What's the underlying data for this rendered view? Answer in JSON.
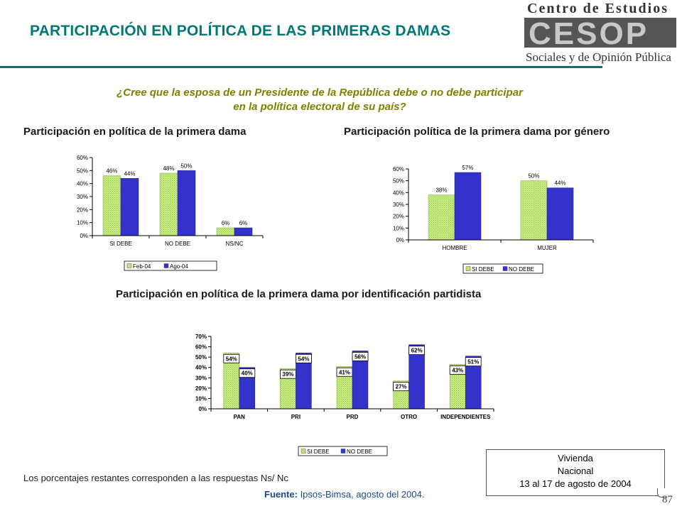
{
  "header": {
    "title": "PARTICIPACIÓN EN POLÍTICA DE LAS PRIMERAS DAMAS",
    "logo_line1": "Centro de Estudios",
    "logo_word": "CESOP",
    "logo_line2": "Sociales y de Opinión Pública"
  },
  "question": {
    "line1": "¿Cree que la esposa de un Presidente de la República debe o no debe participar",
    "line2": "en la política electoral de su país?"
  },
  "subtitles": {
    "chart1": "Participación en política de la primera dama",
    "chart2": "Participación política de la primera dama por género",
    "chart3": "Participación en política de la primera dama por identificación partidista"
  },
  "colors": {
    "series_a": "#ccee88",
    "series_a_hatch": "#8fbf3f",
    "series_b": "#3333cc",
    "title": "#007878",
    "question": "#808000"
  },
  "chart_data": [
    {
      "type": "bar",
      "categories": [
        "SI DEBE",
        "NO DEBE",
        "NS/NC"
      ],
      "series": [
        {
          "name": "Feb-04",
          "values": [
            46,
            48,
            6
          ]
        },
        {
          "name": "Ago-04",
          "values": [
            44,
            50,
            6
          ]
        }
      ],
      "ylim": [
        0,
        60
      ],
      "yticks": [
        "0%",
        "10%",
        "20%",
        "30%",
        "40%",
        "50%",
        "60%"
      ],
      "labels": [
        [
          "46%",
          "48%",
          "6%"
        ],
        [
          "44%",
          "50%",
          "6%"
        ]
      ],
      "legend": "bottom"
    },
    {
      "type": "bar",
      "categories": [
        "HOMBRE",
        "MUJER"
      ],
      "series": [
        {
          "name": "SI DEBE",
          "values": [
            38,
            50
          ]
        },
        {
          "name": "NO DEBE",
          "values": [
            57,
            44
          ]
        }
      ],
      "ylim": [
        0,
        60
      ],
      "yticks": [
        "0%",
        "10%",
        "20%",
        "30%",
        "40%",
        "50%",
        "60%"
      ],
      "labels": [
        [
          "38%",
          "50%"
        ],
        [
          "57%",
          "44%"
        ]
      ],
      "legend": "bottom"
    },
    {
      "type": "bar",
      "categories": [
        "PAN",
        "PRI",
        "PRD",
        "OTRO",
        "INDEPENDIENTES"
      ],
      "series": [
        {
          "name": "SI DEBE",
          "values": [
            54,
            39,
            41,
            27,
            43
          ]
        },
        {
          "name": "NO DEBE",
          "values": [
            40,
            54,
            56,
            62,
            51
          ]
        }
      ],
      "ylim": [
        0,
        70
      ],
      "yticks": [
        "0%",
        "10%",
        "20%",
        "30%",
        "40%",
        "50%",
        "60%",
        "70%"
      ],
      "labels": [
        [
          "54%",
          "39%",
          "41%",
          "27%",
          "43%"
        ],
        [
          "40%",
          "54%",
          "56%",
          "62%",
          "51%"
        ]
      ],
      "legend": "bottom"
    }
  ],
  "footer": {
    "note": "Los porcentajes restantes corresponden a las respuestas Ns/ Nc",
    "source_label": "Fuente:",
    "source_text": " Ipsos-Bimsa, agosto del 2004.",
    "box_line1": "Vivienda",
    "box_line2": "Nacional",
    "box_line3": "13 al 17 de agosto de 2004",
    "page_number": "87"
  }
}
